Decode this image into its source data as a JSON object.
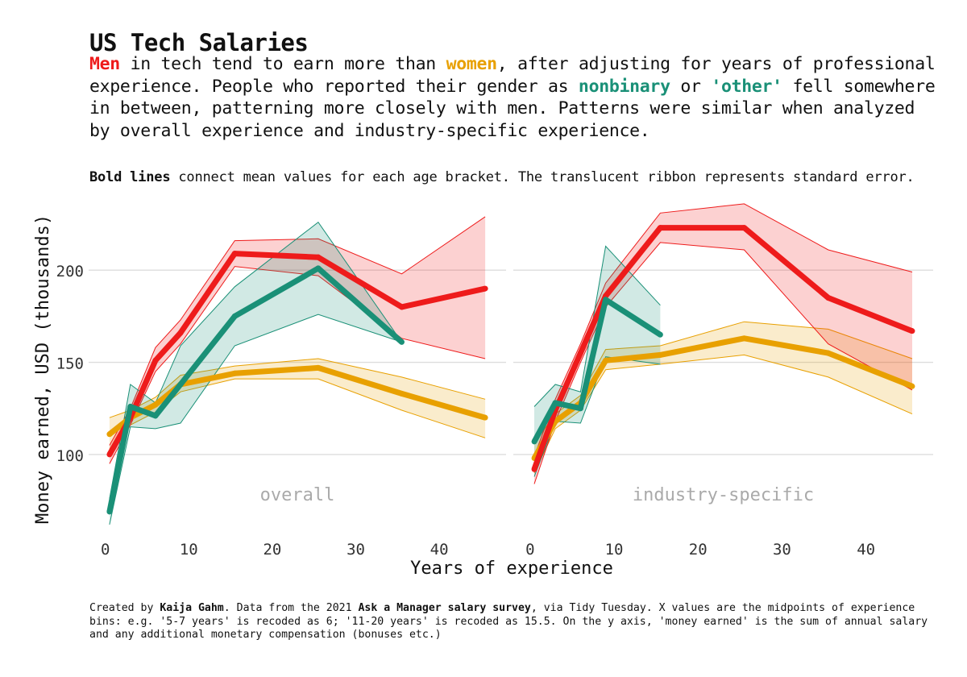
{
  "title": "US Tech Salaries",
  "subtitle": {
    "men": "Men",
    "t1": " in tech tend to earn more than ",
    "women": "women",
    "t2": ", after adjusting for years of professional experience. People who reported their gender as ",
    "nonbinary": "nonbinary",
    "t3": " or ",
    "other": "'other'",
    "t4": " fell somewhere in between, patterning more closely with men. Patterns were similar when analyzed by overall experience and industry-specific experience."
  },
  "note": {
    "bold": "Bold lines",
    "rest": " connect mean values for each age bracket. The translucent ribbon represents standard error."
  },
  "caption": {
    "a": "Created by ",
    "author": "Kaija Gahm",
    "b": ". Data from the 2021 ",
    "survey": "Ask a Manager salary survey",
    "c": ", via Tidy Tuesday. X values are the midpoints of experience bins: e.g. '5-7 years' is recoded as 6; '11-20 years' is recoded as 15.5. On the y axis, 'money earned' is the sum of annual salary and any additional monetary compensation (bonuses etc.)"
  },
  "colors": {
    "men": "#ee1b1b",
    "women": "#e8a000",
    "nonbinary": "#1a9077",
    "grid": "#dddddd",
    "panel_label": "#aaaaaa",
    "text": "#333333"
  },
  "chart_data": {
    "type": "line",
    "xlabel": "Years of experience",
    "ylabel": "Money earned, USD (thousands)",
    "xlim": [
      -2,
      48
    ],
    "ylim": [
      58,
      232
    ],
    "x_ticks": [
      0,
      10,
      20,
      30,
      40
    ],
    "y_ticks": [
      100,
      150,
      200
    ],
    "grid": "horizontal",
    "facets": [
      {
        "label": "overall",
        "series": [
          {
            "key": "women",
            "x": [
              0.5,
              3,
              6,
              9,
              15.5,
              25.5,
              35.5,
              45.5
            ],
            "y": [
              111,
              120,
              127,
              138,
              144,
              147,
              133,
              120
            ],
            "lo": [
              103,
              116,
              123,
              134,
              141,
              141,
              124,
              109
            ],
            "hi": [
              120,
              124,
              131,
              143,
              148,
              152,
              142,
              130
            ]
          },
          {
            "key": "men",
            "x": [
              0.5,
              3,
              6,
              9,
              15.5,
              25.5,
              35.5,
              45.5
            ],
            "y": [
              100,
              120,
              151,
              166,
              209,
              207,
              180,
              190
            ],
            "lo": [
              95,
              116,
              145,
              160,
              202,
              197,
              163,
              152
            ],
            "hi": [
              105,
              125,
              158,
              173,
              216,
              217,
              198,
              229
            ]
          },
          {
            "key": "nonbinary",
            "x": [
              0.5,
              3,
              6,
              9,
              15.5,
              25.5,
              35.5
            ],
            "y": [
              69,
              126,
              121,
              138,
              175,
              201,
              161
            ],
            "lo": [
              62,
              115,
              114,
              117,
              159,
              176,
              161
            ],
            "hi": [
              76,
              138,
              128,
              159,
              191,
              226,
              161
            ]
          }
        ]
      },
      {
        "label": "industry-specific",
        "series": [
          {
            "key": "women",
            "x": [
              0.5,
              3,
              6,
              9,
              15.5,
              25.5,
              35.5,
              45.5
            ],
            "y": [
              98,
              118,
              128,
              151,
              154,
              163,
              155,
              137
            ],
            "lo": [
              90,
              114,
              124,
              146,
              149,
              154,
              142,
              122
            ],
            "hi": [
              106,
              122,
              132,
              157,
              159,
              172,
              168,
              152
            ]
          },
          {
            "key": "men",
            "x": [
              0.5,
              3,
              6,
              9,
              15.5,
              25.5,
              35.5,
              45.5
            ],
            "y": [
              92,
              124,
              155,
              186,
              223,
              223,
              185,
              167
            ],
            "lo": [
              84,
              118,
              150,
              180,
              215,
              211,
              160,
              135
            ],
            "hi": [
              99,
              130,
              160,
              193,
              231,
              236,
              211,
              199
            ]
          },
          {
            "key": "nonbinary",
            "x": [
              0.5,
              3,
              6,
              9,
              15.5
            ],
            "y": [
              107,
              128,
              125,
              184,
              165
            ],
            "lo": [
              88,
              118,
              117,
              153,
              149
            ],
            "hi": [
              126,
              138,
              134,
              213,
              181
            ]
          }
        ]
      }
    ]
  }
}
